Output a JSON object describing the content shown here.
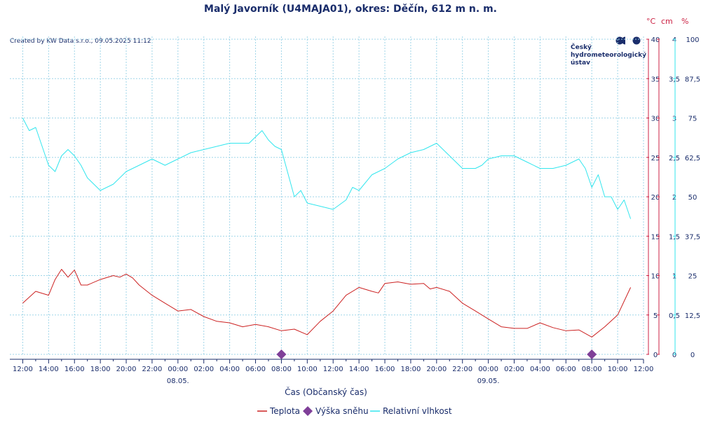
{
  "chart_data": {
    "type": "line",
    "title": "Malý Javorník (U4MAJA01), okres: Děčín, 612 m n. m.",
    "credit": "Created by KW Data s.r.o., 09.05.2025 11:12",
    "logo_text": [
      "Český",
      "hydrometeorologický",
      "ústav"
    ],
    "xlabel": "Čas (Občanský čas)",
    "x_tick_labels": [
      "12:00",
      "14:00",
      "16:00",
      "18:00",
      "20:00",
      "22:00",
      "00:00",
      "02:00",
      "04:00",
      "06:00",
      "08:00",
      "10:00",
      "12:00",
      "14:00",
      "16:00",
      "18:00",
      "20:00",
      "22:00",
      "00:00",
      "02:00",
      "04:00",
      "06:00",
      "08:00",
      "10:00",
      "12:00"
    ],
    "date_labels": [
      "08.05.",
      "09.05."
    ],
    "x_range_hours": [
      -1,
      48
    ],
    "axes": {
      "temp": {
        "unit": "°C",
        "ylim": [
          0,
          40
        ],
        "ticks": [
          0,
          5,
          10,
          15,
          20,
          25,
          30,
          35,
          40
        ]
      },
      "snow": {
        "unit": "cm",
        "ylim": [
          0,
          4
        ],
        "ticks": [
          "0",
          "0,5",
          "1",
          "1,5",
          "2",
          "2,5",
          "3",
          "3,5",
          "4"
        ]
      },
      "humidity": {
        "unit": "%",
        "ylim": [
          0,
          100
        ],
        "ticks": [
          "0",
          "12,5",
          "25",
          "37,5",
          "50",
          "62,5",
          "75",
          "87,5",
          "100"
        ]
      }
    },
    "colors": {
      "temp": "#cc2222",
      "snow": "#7f3f98",
      "humidity": "#33e6ee",
      "text": "#1a2d6b",
      "unit_red": "#cc2244",
      "grid": "#9fd5e8"
    },
    "grid": true,
    "legend": {
      "position": "bottom",
      "entries": [
        "Teplota",
        "Výška sněhu",
        "Relativní vlhkost"
      ]
    },
    "series": [
      {
        "name": "Teplota",
        "axis": "temp",
        "style": "line",
        "x": [
          0,
          1,
          2,
          2.5,
          3,
          3.5,
          4,
          4.5,
          5,
          6,
          7,
          7.5,
          8,
          8.5,
          9,
          10,
          11,
          12,
          13,
          14,
          15,
          16,
          17,
          18,
          19,
          20,
          21,
          22,
          23,
          24,
          25,
          26,
          27,
          27.5,
          28,
          29,
          30,
          31,
          31.5,
          32,
          33,
          34,
          35,
          36,
          37,
          38,
          39,
          40,
          41,
          42,
          43,
          44,
          45,
          46,
          47
        ],
        "y": [
          6.5,
          8,
          7.5,
          9.5,
          10.8,
          9.8,
          10.7,
          8.8,
          8.8,
          9.5,
          10,
          9.8,
          10.2,
          9.7,
          8.8,
          7.5,
          6.5,
          5.5,
          5.7,
          4.8,
          4.2,
          4,
          3.5,
          3.8,
          3.5,
          3,
          3.2,
          2.5,
          4.2,
          5.5,
          7.5,
          8.5,
          8,
          7.8,
          9,
          9.2,
          8.9,
          9,
          8.3,
          8.5,
          8,
          6.5,
          5.5,
          4.5,
          3.5,
          3.3,
          3.3,
          4,
          3.4,
          3,
          3.1,
          2.2,
          3.5,
          5,
          8.5
        ]
      },
      {
        "name": "Výška sněhu",
        "axis": "snow",
        "style": "marker",
        "x": [
          20,
          44
        ],
        "y": [
          0,
          0
        ]
      },
      {
        "name": "Relativní vlhkost",
        "axis": "humidity",
        "style": "line",
        "x": [
          0,
          0.5,
          1,
          1.5,
          2,
          2.5,
          3,
          3.5,
          4,
          4.5,
          5,
          6,
          7,
          8,
          9,
          10,
          11,
          12,
          13,
          14,
          15,
          16,
          17,
          17.5,
          18,
          18.5,
          19,
          19.5,
          20,
          21,
          21.5,
          22,
          23,
          24,
          25,
          25.5,
          26,
          27,
          28,
          29,
          30,
          31,
          32,
          33,
          34,
          35,
          35.5,
          36,
          37,
          38,
          39,
          40,
          41,
          42,
          43,
          43.5,
          44,
          44.5,
          45,
          45.5,
          46,
          46.5,
          47
        ],
        "y": [
          75,
          71,
          72,
          66,
          60,
          58,
          63,
          65,
          63,
          60,
          56,
          52,
          54,
          58,
          60,
          62,
          60,
          62,
          64,
          65,
          66,
          67,
          67,
          67,
          69,
          71,
          68,
          66,
          65,
          50,
          52,
          48,
          47,
          46,
          49,
          53,
          52,
          57,
          59,
          62,
          64,
          65,
          67,
          63,
          59,
          59,
          60,
          62,
          63,
          63,
          61,
          59,
          59,
          60,
          62,
          59,
          53,
          57,
          50,
          50,
          46,
          49,
          43
        ]
      }
    ]
  }
}
